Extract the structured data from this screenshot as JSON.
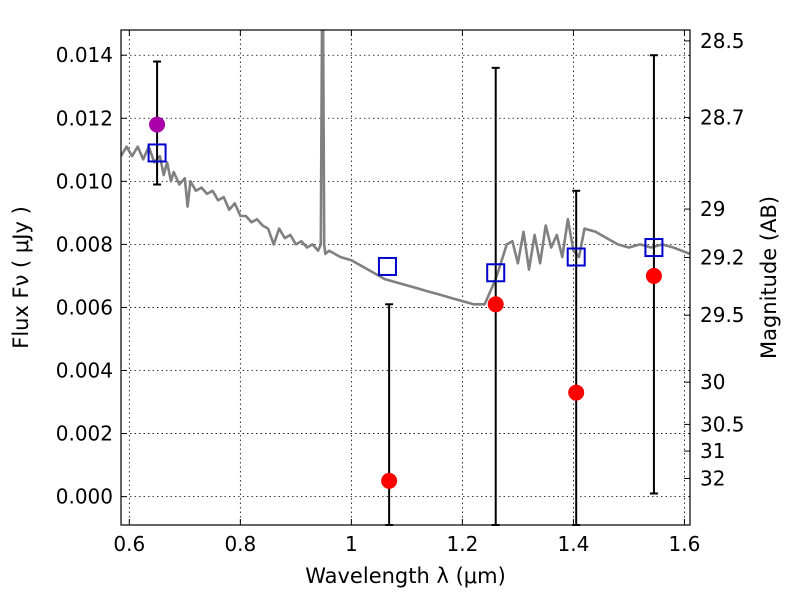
{
  "chart_data": {
    "type": "scatter",
    "xlabel": "Wavelength  λ (μm)",
    "ylabel": "Flux  Fν  ( μJy )",
    "y2label": "Magnitude (AB)",
    "xlim": [
      0.585,
      1.61
    ],
    "ylim": [
      -0.0009,
      0.0148
    ],
    "grid": true,
    "x_ticks": [
      {
        "value": 0.6,
        "label": "0.6"
      },
      {
        "value": 0.8,
        "label": "0.8"
      },
      {
        "value": 1.0,
        "label": "1"
      },
      {
        "value": 1.2,
        "label": "1.2"
      },
      {
        "value": 1.4,
        "label": "1.4"
      },
      {
        "value": 1.6,
        "label": "1.6"
      }
    ],
    "y_ticks": [
      {
        "value": 0.0,
        "label": "0.000"
      },
      {
        "value": 0.002,
        "label": "0.002"
      },
      {
        "value": 0.004,
        "label": "0.004"
      },
      {
        "value": 0.006,
        "label": "0.006"
      },
      {
        "value": 0.008,
        "label": "0.008"
      },
      {
        "value": 0.01,
        "label": "0.010"
      },
      {
        "value": 0.012,
        "label": "0.012"
      },
      {
        "value": 0.014,
        "label": "0.014"
      }
    ],
    "y2_ticks": [
      {
        "value": 28.5,
        "label": "28.5"
      },
      {
        "value": 28.7,
        "label": "28.7"
      },
      {
        "value": 29.0,
        "label": "29"
      },
      {
        "value": 29.2,
        "label": "29.2"
      },
      {
        "value": 29.5,
        "label": "29.5"
      },
      {
        "value": 30.0,
        "label": "30"
      },
      {
        "value": 30.5,
        "label": "30.5"
      },
      {
        "value": 31.0,
        "label": "31"
      },
      {
        "value": 32.0,
        "label": "32"
      }
    ],
    "colors": {
      "template": "#808080",
      "model": "#0000cc",
      "observed": "#ff0000",
      "optical": "#aa00aa",
      "errorbar": "#000000"
    },
    "template_spectrum": {
      "x": [
        0.585,
        0.595,
        0.605,
        0.615,
        0.625,
        0.635,
        0.645,
        0.655,
        0.662,
        0.668,
        0.675,
        0.68,
        0.69,
        0.7,
        0.705,
        0.71,
        0.72,
        0.73,
        0.74,
        0.75,
        0.76,
        0.77,
        0.78,
        0.79,
        0.8,
        0.81,
        0.82,
        0.83,
        0.84,
        0.85,
        0.86,
        0.87,
        0.88,
        0.89,
        0.9,
        0.91,
        0.92,
        0.93,
        0.94,
        0.945,
        0.947,
        0.949,
        0.951,
        0.953,
        0.96,
        0.98,
        1.0,
        1.02,
        1.04,
        1.06,
        1.08,
        1.1,
        1.12,
        1.14,
        1.16,
        1.18,
        1.2,
        1.22,
        1.24,
        1.25,
        1.26,
        1.28,
        1.29,
        1.3,
        1.31,
        1.32,
        1.33,
        1.34,
        1.35,
        1.36,
        1.37,
        1.38,
        1.39,
        1.4,
        1.41,
        1.42,
        1.44,
        1.46,
        1.48,
        1.5,
        1.52,
        1.54,
        1.56,
        1.58,
        1.61
      ],
      "y": [
        0.0108,
        0.0111,
        0.0108,
        0.0111,
        0.0107,
        0.0111,
        0.0106,
        0.0108,
        0.0102,
        0.0106,
        0.01,
        0.0103,
        0.0099,
        0.0101,
        0.0092,
        0.01,
        0.0097,
        0.0098,
        0.0096,
        0.0097,
        0.0094,
        0.0095,
        0.0091,
        0.0093,
        0.0089,
        0.0089,
        0.0087,
        0.0088,
        0.0086,
        0.0085,
        0.008,
        0.0085,
        0.0082,
        0.0083,
        0.008,
        0.0081,
        0.0079,
        0.008,
        0.0078,
        0.008,
        0.015,
        0.015,
        0.008,
        0.0077,
        0.0078,
        0.0076,
        0.0075,
        0.0073,
        0.0071,
        0.0069,
        0.0068,
        0.0067,
        0.0066,
        0.0065,
        0.0064,
        0.0063,
        0.0062,
        0.0061,
        0.0061,
        0.0065,
        0.0069,
        0.008,
        0.0081,
        0.0074,
        0.0084,
        0.0072,
        0.0083,
        0.0074,
        0.0086,
        0.0079,
        0.0083,
        0.0076,
        0.0088,
        0.0078,
        0.0076,
        0.0085,
        0.0084,
        0.0082,
        0.008,
        0.0079,
        0.008,
        0.0079,
        0.008,
        0.0079,
        0.0077
      ]
    },
    "model_points": {
      "x": [
        0.65,
        1.065,
        1.26,
        1.405,
        1.545
      ],
      "y": [
        0.0109,
        0.0073,
        0.0071,
        0.0076,
        0.0079
      ]
    },
    "observed_points": {
      "x": [
        1.068,
        1.26,
        1.405,
        1.545
      ],
      "y": [
        0.0005,
        0.0061,
        0.0033,
        0.007
      ],
      "err_low": [
        -0.0009,
        -0.0009,
        -0.0009,
        0.0001
      ],
      "err_high": [
        0.0061,
        0.0136,
        0.0097,
        0.014
      ]
    },
    "optical_point": {
      "x": 0.65,
      "y": 0.0118,
      "err_low": 0.0099,
      "err_high": 0.0138
    }
  }
}
